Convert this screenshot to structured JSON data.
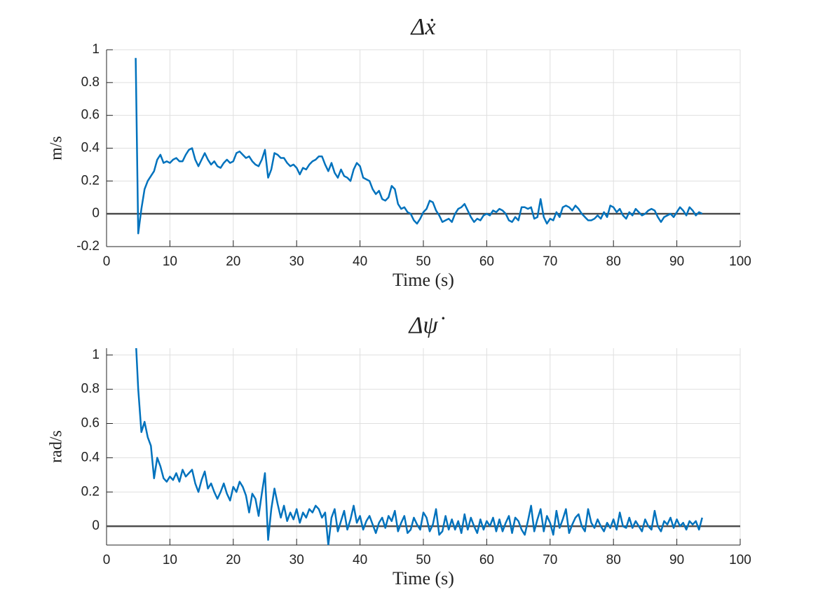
{
  "chart_data": [
    {
      "type": "line",
      "title": "Δẋ",
      "xlabel": "Time (s)",
      "ylabel": "m/s",
      "color": "#0072bd",
      "grid": true,
      "hline": 0,
      "xlim": [
        0,
        100
      ],
      "xticks": [
        0,
        10,
        20,
        30,
        40,
        50,
        60,
        70,
        80,
        90,
        100
      ],
      "ylim": [
        -0.2,
        1
      ],
      "yticks": [
        -0.2,
        0,
        0.2,
        0.4,
        0.6,
        0.8,
        1
      ],
      "x": [
        4.6,
        5,
        5.5,
        6,
        6.5,
        7,
        7.5,
        8,
        8.5,
        9,
        9.5,
        10,
        10.5,
        11,
        11.5,
        12,
        12.5,
        13,
        13.5,
        14,
        14.5,
        15,
        15.5,
        16,
        16.5,
        17,
        17.5,
        18,
        18.5,
        19,
        19.5,
        20,
        20.5,
        21,
        21.5,
        22,
        22.5,
        23,
        23.5,
        24,
        24.5,
        25,
        25.5,
        26,
        26.5,
        27,
        27.5,
        28,
        28.5,
        29,
        29.5,
        30,
        30.5,
        31,
        31.5,
        32,
        32.5,
        33,
        33.5,
        34,
        34.5,
        35,
        35.5,
        36,
        36.5,
        37,
        37.5,
        38,
        38.5,
        39,
        39.5,
        40,
        40.5,
        41,
        41.5,
        42,
        42.5,
        43,
        43.5,
        44,
        44.5,
        45,
        45.5,
        46,
        46.5,
        47,
        47.5,
        48,
        48.5,
        49,
        49.5,
        50,
        50.5,
        51,
        51.5,
        52,
        52.5,
        53,
        53.5,
        54,
        54.5,
        55,
        55.5,
        56,
        56.5,
        57,
        57.5,
        58,
        58.5,
        59,
        59.5,
        60,
        60.5,
        61,
        61.5,
        62,
        62.5,
        63,
        63.5,
        64,
        64.5,
        65,
        65.5,
        66,
        66.5,
        67,
        67.5,
        68,
        68.5,
        69,
        69.5,
        70,
        70.5,
        71,
        71.5,
        72,
        72.5,
        73,
        73.5,
        74,
        74.5,
        75,
        75.5,
        76,
        76.5,
        77,
        77.5,
        78,
        78.5,
        79,
        79.5,
        80,
        80.5,
        81,
        81.5,
        82,
        82.5,
        83,
        83.5,
        84,
        84.5,
        85,
        85.5,
        86,
        86.5,
        87,
        87.5,
        88,
        88.5,
        89,
        89.5,
        90,
        90.5,
        91,
        91.5,
        92,
        92.5,
        93,
        93.5,
        94
      ],
      "values": [
        0.95,
        -0.12,
        0.03,
        0.15,
        0.2,
        0.23,
        0.26,
        0.33,
        0.36,
        0.31,
        0.32,
        0.31,
        0.33,
        0.34,
        0.32,
        0.32,
        0.36,
        0.39,
        0.4,
        0.33,
        0.29,
        0.33,
        0.37,
        0.33,
        0.3,
        0.32,
        0.29,
        0.28,
        0.31,
        0.33,
        0.31,
        0.32,
        0.37,
        0.38,
        0.36,
        0.34,
        0.35,
        0.32,
        0.3,
        0.29,
        0.33,
        0.39,
        0.22,
        0.27,
        0.37,
        0.36,
        0.34,
        0.34,
        0.31,
        0.29,
        0.3,
        0.28,
        0.24,
        0.28,
        0.27,
        0.3,
        0.32,
        0.33,
        0.35,
        0.35,
        0.3,
        0.26,
        0.31,
        0.25,
        0.22,
        0.27,
        0.23,
        0.22,
        0.2,
        0.27,
        0.31,
        0.29,
        0.22,
        0.21,
        0.2,
        0.15,
        0.12,
        0.14,
        0.09,
        0.08,
        0.1,
        0.17,
        0.15,
        0.06,
        0.03,
        0.04,
        0.01,
        0.0,
        -0.04,
        -0.06,
        -0.03,
        0.01,
        0.03,
        0.08,
        0.07,
        0.02,
        -0.01,
        -0.05,
        -0.04,
        -0.03,
        -0.05,
        0.0,
        0.03,
        0.04,
        0.06,
        0.02,
        -0.02,
        -0.05,
        -0.03,
        -0.04,
        -0.01,
        0.0,
        -0.01,
        0.02,
        0.01,
        0.03,
        0.02,
        0.0,
        -0.04,
        -0.05,
        -0.02,
        -0.04,
        0.04,
        0.04,
        0.03,
        0.04,
        -0.03,
        -0.02,
        0.09,
        -0.02,
        -0.06,
        -0.03,
        -0.04,
        0.01,
        -0.02,
        0.04,
        0.05,
        0.04,
        0.02,
        0.05,
        0.03,
        0.0,
        -0.02,
        -0.04,
        -0.04,
        -0.03,
        -0.01,
        -0.03,
        0.01,
        -0.02,
        0.05,
        0.04,
        0.01,
        0.03,
        -0.01,
        -0.03,
        0.01,
        -0.01,
        0.03,
        0.01,
        -0.01,
        0.0,
        0.02,
        0.03,
        0.02,
        -0.02,
        -0.05,
        -0.02,
        -0.01,
        0.0,
        -0.02,
        0.01,
        0.04,
        0.02,
        -0.01,
        0.04,
        0.02,
        -0.01,
        0.01,
        0.0
      ]
    },
    {
      "type": "line",
      "title": "Δψ̇",
      "xlabel": "Time (s)",
      "ylabel": "rad/s",
      "color": "#0072bd",
      "grid": true,
      "hline": 0,
      "xlim": [
        0,
        100
      ],
      "xticks": [
        0,
        10,
        20,
        30,
        40,
        50,
        60,
        70,
        80,
        90,
        100
      ],
      "ylim": [
        -0.11,
        1.04
      ],
      "yticks": [
        0,
        0.2,
        0.4,
        0.6,
        0.8,
        1
      ],
      "x": [
        4.6,
        5,
        5.5,
        6,
        6.5,
        7,
        7.5,
        8,
        8.5,
        9,
        9.5,
        10,
        10.5,
        11,
        11.5,
        12,
        12.5,
        13,
        13.5,
        14,
        14.5,
        15,
        15.5,
        16,
        16.5,
        17,
        17.5,
        18,
        18.5,
        19,
        19.5,
        20,
        20.5,
        21,
        21.5,
        22,
        22.5,
        23,
        23.5,
        24,
        24.5,
        25,
        25.5,
        26,
        26.5,
        27,
        27.5,
        28,
        28.5,
        29,
        29.5,
        30,
        30.5,
        31,
        31.5,
        32,
        32.5,
        33,
        33.5,
        34,
        34.5,
        35,
        35.5,
        36,
        36.5,
        37,
        37.5,
        38,
        38.5,
        39,
        39.5,
        40,
        40.5,
        41,
        41.5,
        42,
        42.5,
        43,
        43.5,
        44,
        44.5,
        45,
        45.5,
        46,
        46.5,
        47,
        47.5,
        48,
        48.5,
        49,
        49.5,
        50,
        50.5,
        51,
        51.5,
        52,
        52.5,
        53,
        53.5,
        54,
        54.5,
        55,
        55.5,
        56,
        56.5,
        57,
        57.5,
        58,
        58.5,
        59,
        59.5,
        60,
        60.5,
        61,
        61.5,
        62,
        62.5,
        63,
        63.5,
        64,
        64.5,
        65,
        65.5,
        66,
        66.5,
        67,
        67.5,
        68,
        68.5,
        69,
        69.5,
        70,
        70.5,
        71,
        71.5,
        72,
        72.5,
        73,
        73.5,
        74,
        74.5,
        75,
        75.5,
        76,
        76.5,
        77,
        77.5,
        78,
        78.5,
        79,
        79.5,
        80,
        80.5,
        81,
        81.5,
        82,
        82.5,
        83,
        83.5,
        84,
        84.5,
        85,
        85.5,
        86,
        86.5,
        87,
        87.5,
        88,
        88.5,
        89,
        89.5,
        90,
        90.5,
        91,
        91.5,
        92,
        92.5,
        93,
        93.5,
        94
      ],
      "values": [
        1.1,
        0.8,
        0.55,
        0.61,
        0.52,
        0.47,
        0.28,
        0.4,
        0.35,
        0.28,
        0.26,
        0.29,
        0.27,
        0.31,
        0.26,
        0.33,
        0.29,
        0.31,
        0.33,
        0.25,
        0.2,
        0.27,
        0.32,
        0.22,
        0.25,
        0.2,
        0.16,
        0.2,
        0.25,
        0.19,
        0.15,
        0.23,
        0.2,
        0.26,
        0.23,
        0.18,
        0.08,
        0.19,
        0.16,
        0.06,
        0.19,
        0.31,
        -0.08,
        0.1,
        0.22,
        0.13,
        0.05,
        0.12,
        0.03,
        0.08,
        0.04,
        0.1,
        0.02,
        0.08,
        0.05,
        0.1,
        0.08,
        0.12,
        0.1,
        0.05,
        0.08,
        -0.11,
        0.05,
        0.1,
        -0.03,
        0.03,
        0.09,
        -0.02,
        0.04,
        0.12,
        0.02,
        0.06,
        -0.02,
        0.03,
        0.06,
        0.01,
        -0.04,
        0.02,
        0.05,
        -0.01,
        0.06,
        0.03,
        0.09,
        -0.03,
        0.02,
        0.06,
        -0.04,
        -0.02,
        0.05,
        0.01,
        -0.02,
        0.08,
        0.05,
        -0.03,
        0.01,
        0.1,
        -0.05,
        -0.03,
        0.06,
        -0.02,
        0.04,
        -0.02,
        0.03,
        -0.04,
        0.07,
        -0.02,
        0.05,
        0.0,
        -0.04,
        0.04,
        -0.02,
        0.03,
        0.0,
        0.05,
        -0.03,
        0.04,
        -0.03,
        0.02,
        0.06,
        -0.04,
        0.05,
        0.03,
        -0.02,
        -0.05,
        0.03,
        0.12,
        -0.03,
        0.04,
        0.1,
        -0.03,
        0.06,
        0.02,
        -0.05,
        0.09,
        -0.01,
        0.04,
        0.1,
        -0.04,
        0.01,
        0.05,
        0.07,
        0.0,
        -0.03,
        0.1,
        0.02,
        -0.01,
        0.04,
        0.0,
        -0.03,
        0.02,
        -0.01,
        0.04,
        -0.02,
        0.08,
        0.0,
        -0.01,
        0.05,
        -0.01,
        0.03,
        0.0,
        -0.03,
        0.04,
        0.0,
        -0.02,
        0.09,
        0.0,
        -0.03,
        0.03,
        0.01,
        0.05,
        -0.01,
        0.04,
        0.0,
        0.02,
        -0.02,
        0.03,
        0.01,
        0.03,
        -0.02,
        0.05
      ]
    }
  ]
}
